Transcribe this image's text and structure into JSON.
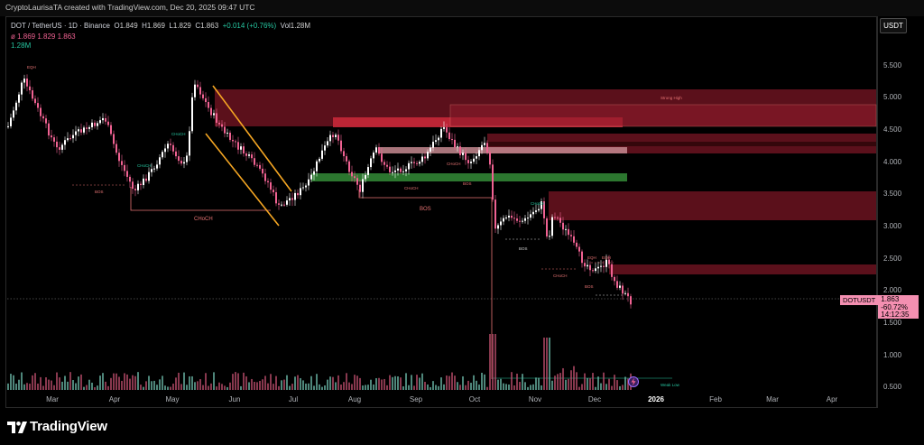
{
  "header": {
    "attribution": "CryptoLaurisaTA created with TradingView.com, Dec 20, 2025 09:47 UTC"
  },
  "legend": {
    "symbol": "DOT / TetherUS · 1D · Binance",
    "open_label": "O",
    "open": "1.849",
    "high_label": "H",
    "high": "1.869",
    "low_label": "L",
    "low": "1.829",
    "close_label": "C",
    "close": "1.863",
    "change": "+0.014 (+0.76%)",
    "volume_label": "Vol",
    "volume": "1.28M",
    "line2": "ø  1.869  1.829  1.863",
    "line3": "1.28M"
  },
  "price_axis": {
    "currency": "USDT",
    "ticks": [
      "5.500",
      "5.000",
      "4.500",
      "4.000",
      "3.500",
      "3.000",
      "2.500",
      "2.000",
      "1.500",
      "1.000",
      "0.500"
    ]
  },
  "time_axis": {
    "ticks": [
      "Mar",
      "Apr",
      "May",
      "Jun",
      "Jul",
      "Aug",
      "Sep",
      "Oct",
      "Nov",
      "Dec",
      "2026",
      "Feb",
      "Mar",
      "Apr"
    ]
  },
  "price_label": {
    "symbol": "DOTUSDT",
    "price": "1.863",
    "change": "-60.72%",
    "countdown": "14:12:35"
  },
  "annotations": {
    "choch": "CHoCH",
    "bos": "BOS",
    "eqh": "EQH",
    "strong_high": "Strong High",
    "weak_low": "Weak Low"
  },
  "colors": {
    "bull": "#ffffff",
    "bear": "#f06292",
    "ob_red": "#b71c2c",
    "ob_green": "#2e7d32",
    "channel": "#f5a623"
  },
  "footer": {
    "brand": "TradingView"
  }
}
